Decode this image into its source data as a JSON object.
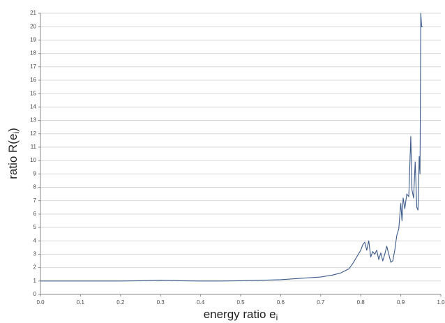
{
  "chart_data": {
    "type": "line",
    "xlabel": {
      "text": "energy ratio e",
      "subscript": "i"
    },
    "ylabel": {
      "text": "ratio R(e",
      "subscript": "i",
      "suffix": ")"
    },
    "x": [
      0,
      0.05,
      0.1,
      0.15,
      0.2,
      0.25,
      0.3,
      0.35,
      0.4,
      0.45,
      0.5,
      0.55,
      0.6,
      0.65,
      0.7,
      0.73,
      0.75,
      0.77,
      0.78,
      0.79,
      0.8,
      0.805,
      0.81,
      0.815,
      0.82,
      0.825,
      0.83,
      0.835,
      0.84,
      0.845,
      0.85,
      0.855,
      0.86,
      0.865,
      0.87,
      0.875,
      0.88,
      0.885,
      0.89,
      0.895,
      0.9,
      0.903,
      0.906,
      0.91,
      0.915,
      0.92,
      0.925,
      0.928,
      0.932,
      0.936,
      0.94,
      0.943,
      0.946,
      0.948,
      0.95,
      0.952,
      0.955
    ],
    "values": [
      1.0,
      1.0,
      1.0,
      1.0,
      1.0,
      1.02,
      1.05,
      1.02,
      1.0,
      1.0,
      1.02,
      1.05,
      1.1,
      1.2,
      1.3,
      1.45,
      1.6,
      1.9,
      2.3,
      2.8,
      3.3,
      3.7,
      3.9,
      3.3,
      4.0,
      2.8,
      3.2,
      3.0,
      3.3,
      2.6,
      3.1,
      2.5,
      3.0,
      3.6,
      3.0,
      2.4,
      2.5,
      3.3,
      4.4,
      4.9,
      6.8,
      5.5,
      7.2,
      6.4,
      7.5,
      7.3,
      11.8,
      7.8,
      7.2,
      9.9,
      6.5,
      6.3,
      10.3,
      9.0,
      21,
      20.0,
      20.0
    ],
    "color": "#3b5a8a",
    "xlim": [
      0,
      1
    ],
    "xticks": [
      {
        "value": 0,
        "label": "0.0"
      },
      0.1,
      0.2,
      0.3,
      0.4,
      0.5,
      0.6,
      0.7,
      0.8,
      0.9,
      {
        "value": 1,
        "label": "1.0"
      }
    ],
    "ylim": [
      0,
      21
    ],
    "yticks": [
      0,
      1,
      2,
      3,
      4,
      5,
      6,
      7,
      8,
      9,
      10,
      11,
      12,
      13,
      14,
      15,
      16,
      17,
      18,
      19,
      20,
      21
    ],
    "grid": true
  }
}
